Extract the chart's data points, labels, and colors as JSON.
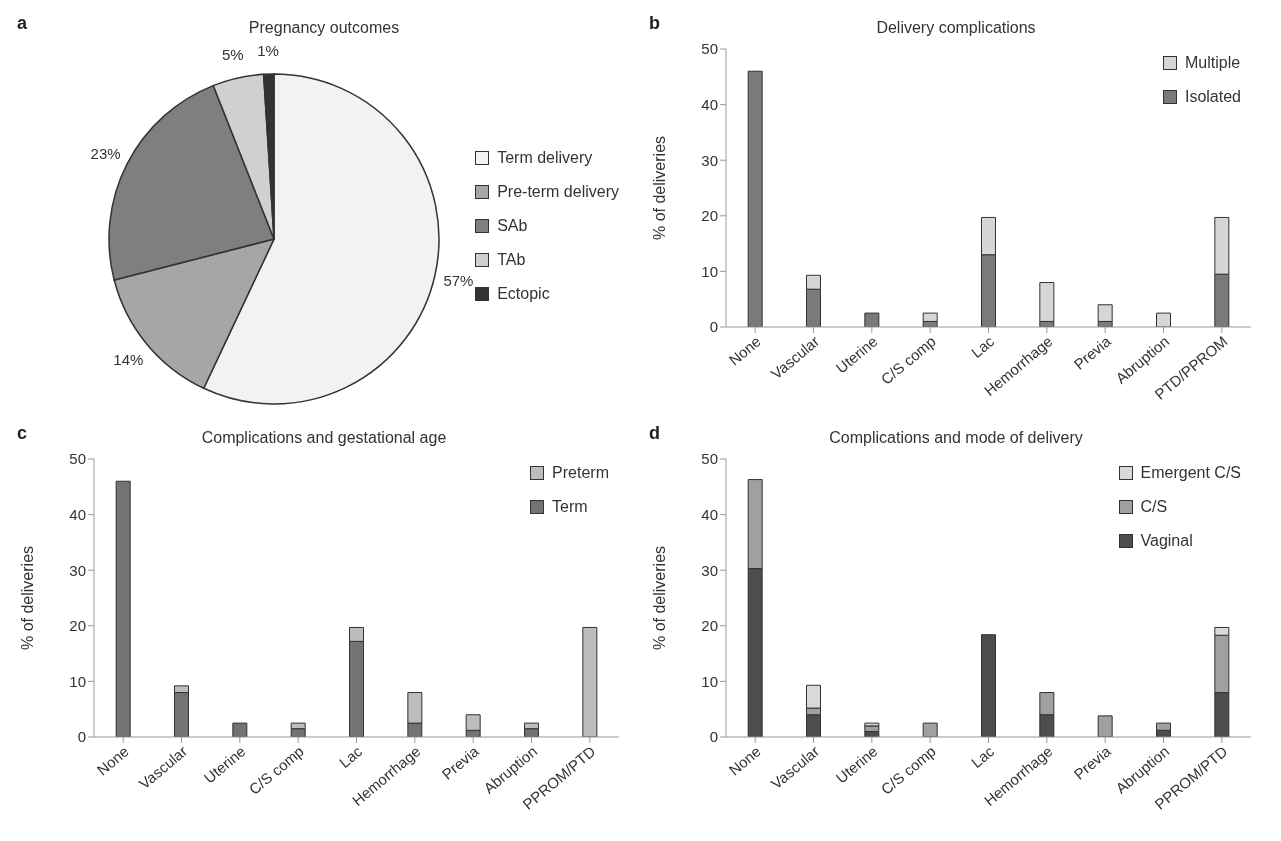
{
  "chart_data": [
    {
      "type": "pie",
      "title": "Pregnancy outcomes",
      "annotations": [
        "a"
      ],
      "categories": [
        "Term delivery",
        "Pre-term delivery",
        "SAb",
        "TAb",
        "Ectopic"
      ],
      "values": [
        57,
        14,
        23,
        5,
        1
      ],
      "value_labels": [
        "57%",
        "14%",
        "23%",
        "5%",
        "1%"
      ],
      "colors": [
        "#f2f2f2",
        "#a6a6a6",
        "#7f7f7f",
        "#d0d0d0",
        "#333333"
      ],
      "legend": "right"
    },
    {
      "type": "bar",
      "title": "Delivery complications",
      "annotations": [
        "b"
      ],
      "ylabel": "% of deliveries",
      "categories": [
        "None",
        "Vascular",
        "Uterine",
        "C/S comp",
        "Lac",
        "Hemorrhage",
        "Previa",
        "Abruption",
        "PTD/PPROM"
      ],
      "stacked": true,
      "ylim": [
        0,
        50
      ],
      "yticks": [
        0,
        10,
        20,
        30,
        40,
        50
      ],
      "legend": "top right",
      "series": [
        {
          "name": "Isolated",
          "color": "#7a7a7a",
          "values": [
            46,
            6.8,
            2.5,
            1,
            13,
            1,
            1,
            0,
            9.5
          ]
        },
        {
          "name": "Multiple",
          "color": "#d6d6d6",
          "values": [
            0,
            2.5,
            0,
            1.5,
            6.7,
            7,
            3,
            2.5,
            10.2
          ]
        }
      ]
    },
    {
      "type": "bar",
      "title": "Complications and gestational age",
      "annotations": [
        "c"
      ],
      "ylabel": "% of deliveries",
      "categories": [
        "None",
        "Vascular",
        "Uterine",
        "C/S comp",
        "Lac",
        "Hemorrhage",
        "Previa",
        "Abruption",
        "PPROM/PTD"
      ],
      "stacked": true,
      "ylim": [
        0,
        50
      ],
      "yticks": [
        0,
        10,
        20,
        30,
        40,
        50
      ],
      "legend": "top right",
      "series": [
        {
          "name": "Term",
          "color": "#737373",
          "values": [
            46,
            8,
            2.5,
            1.5,
            17.2,
            2.5,
            1.2,
            1.5,
            0
          ]
        },
        {
          "name": "Preterm",
          "color": "#bdbdbd",
          "values": [
            0,
            1.2,
            0,
            1,
            2.5,
            5.5,
            2.8,
            1,
            19.7
          ]
        }
      ]
    },
    {
      "type": "bar",
      "title": "Complications and mode of delivery",
      "annotations": [
        "d"
      ],
      "ylabel": "% of deliveries",
      "categories": [
        "None",
        "Vascular",
        "Uterine",
        "C/S comp",
        "Lac",
        "Hemorrhage",
        "Previa",
        "Abruption",
        "PPROM/PTD"
      ],
      "stacked": true,
      "ylim": [
        0,
        50
      ],
      "yticks": [
        0,
        10,
        20,
        30,
        40,
        50
      ],
      "legend": "top right",
      "series": [
        {
          "name": "Vaginal",
          "color": "#4d4d4d",
          "values": [
            30.3,
            4,
            1,
            0,
            18.4,
            4,
            0,
            1.2,
            8
          ]
        },
        {
          "name": "C/S",
          "color": "#a0a0a0",
          "values": [
            16,
            1.2,
            1,
            2.5,
            0,
            4,
            3.8,
            1.3,
            10.3
          ]
        },
        {
          "name": "Emergent C/S",
          "color": "#d9d9d9",
          "values": [
            0,
            4.1,
            0.5,
            0,
            0,
            0,
            0,
            0,
            1.4
          ]
        }
      ]
    }
  ]
}
